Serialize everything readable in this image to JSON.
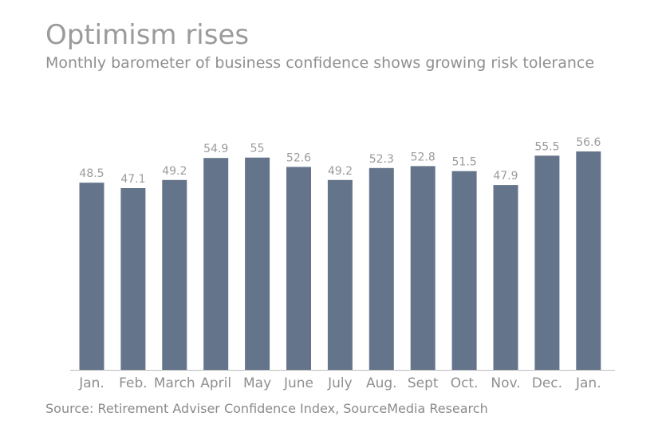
{
  "header": {
    "title": "Optimism rises",
    "subtitle": "Monthly barometer of business confidence shows growing risk tolerance"
  },
  "footer": {
    "source": "Source: Retirement Adviser Confidence Index, SourceMedia Research"
  },
  "colors": {
    "bar": "#64748a",
    "text": "#9b9b9b",
    "axis": "#bcbcbc"
  },
  "chart_data": {
    "type": "bar",
    "title": "Optimism rises",
    "subtitle": "Monthly barometer of business confidence shows growing risk tolerance",
    "categories": [
      "Jan.",
      "Feb.",
      "March",
      "April",
      "May",
      "June",
      "July",
      "Aug.",
      "Sept",
      "Oct.",
      "Nov.",
      "Dec.",
      "Jan."
    ],
    "values": [
      48.5,
      47.1,
      49.2,
      54.9,
      55,
      52.6,
      49.2,
      52.3,
      52.8,
      51.5,
      47.9,
      55.5,
      56.6
    ],
    "value_labels": [
      "48.5",
      "47.1",
      "49.2",
      "54.9",
      "55",
      "52.6",
      "49.2",
      "52.3",
      "52.8",
      "51.5",
      "47.9",
      "55.5",
      "56.6"
    ],
    "xlabel": "",
    "ylabel": "",
    "ylim": [
      0,
      56.6
    ],
    "grid": false,
    "legend": "none"
  }
}
